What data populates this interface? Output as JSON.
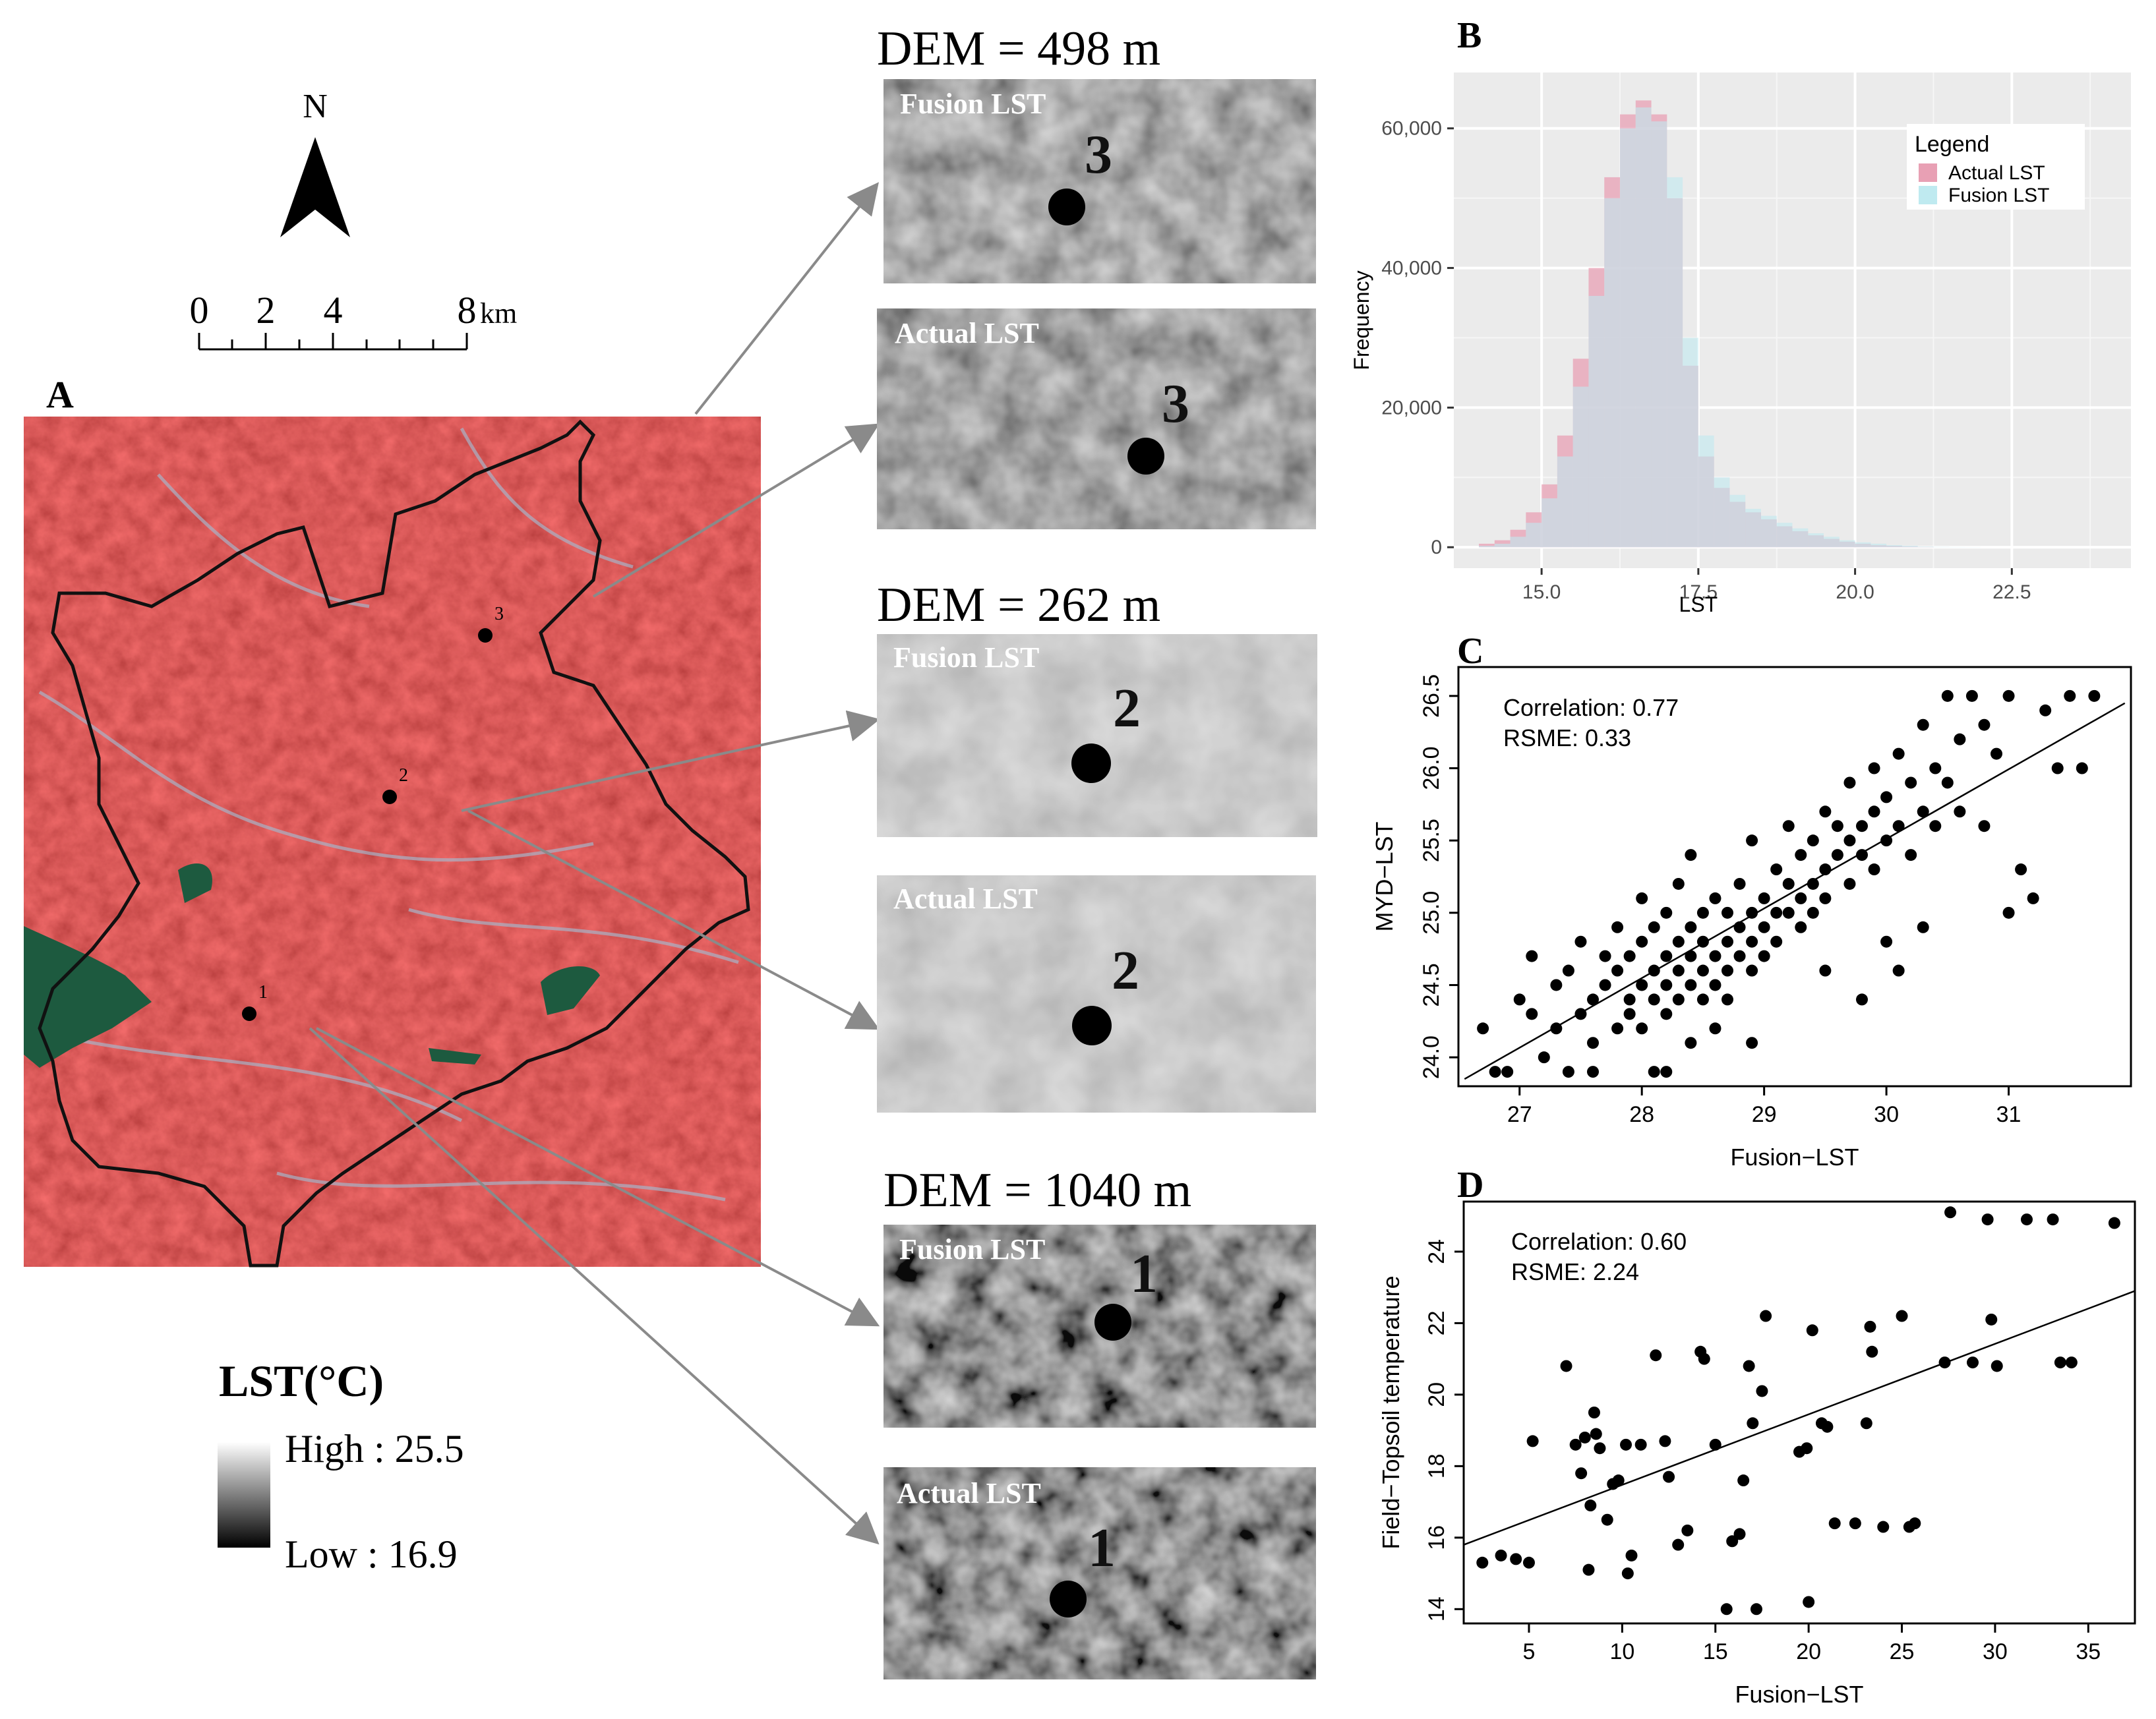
{
  "panel_a": {
    "label": "A",
    "north": "N",
    "scale_ticks": [
      "0",
      "2",
      "4",
      "8"
    ],
    "scale_unit": "km",
    "site_labels": [
      "1",
      "2",
      "3"
    ],
    "legend_title": "LST(°C)",
    "legend_high": "High : 25.5",
    "legend_low": "Low : 16.9",
    "colors": {
      "map_red": "#d62a2a",
      "water": "#1d5a3f",
      "boundary": "#111111"
    }
  },
  "insets": [
    {
      "dem": "DEM = 498 m",
      "site": "3",
      "fusion_label": "Fusion LST",
      "actual_label": "Actual LST"
    },
    {
      "dem": "DEM = 262 m",
      "site": "2",
      "fusion_label": "Fusion LST",
      "actual_label": "Actual LST"
    },
    {
      "dem": "DEM = 1040 m",
      "site": "1",
      "fusion_label": "Fusion LST",
      "actual_label": "Actual LST"
    }
  ],
  "chart_data": [
    {
      "panel": "B",
      "type": "bar",
      "subtype": "overlapping-histogram",
      "xlabel": "LST",
      "ylabel": "Frequency",
      "xlim": [
        13.6,
        24.4
      ],
      "ylim": [
        -3000,
        68000
      ],
      "xticks": [
        15.0,
        17.5,
        20.0,
        22.5
      ],
      "xtick_labels": [
        "15.0",
        "17.5",
        "20.0",
        "22.5"
      ],
      "yticks": [
        0,
        20000,
        40000,
        60000
      ],
      "ytick_labels": [
        "0",
        "20,000",
        "40,000",
        "60,000"
      ],
      "bin_start": 14.0,
      "bin_width": 0.25,
      "legend_title": "Legend",
      "legend_position": "top-right",
      "series": [
        {
          "name": "Actual LST",
          "color": "#e8a0b4",
          "values": [
            500,
            1000,
            2500,
            5000,
            9000,
            16000,
            27000,
            40000,
            53000,
            62000,
            64000,
            62000,
            50000,
            26000,
            13000,
            8500,
            6500,
            5000,
            4000,
            3000,
            2300,
            1700,
            1200,
            800,
            500,
            300,
            200,
            100,
            50,
            0,
            0,
            0
          ]
        },
        {
          "name": "Fusion LST",
          "color": "#bfeaf0",
          "values": [
            200,
            500,
            1500,
            3500,
            7000,
            13000,
            23000,
            36000,
            50000,
            60000,
            63000,
            61000,
            53000,
            30000,
            16000,
            10000,
            7500,
            5500,
            4500,
            3500,
            2700,
            2000,
            1500,
            1000,
            700,
            500,
            300,
            200,
            100,
            50,
            30,
            20
          ]
        }
      ]
    },
    {
      "panel": "C",
      "type": "scatter",
      "xlabel": "Fusion−LST",
      "ylabel": "MYD−LST",
      "xlim": [
        26.5,
        32.0
      ],
      "ylim": [
        23.8,
        26.7
      ],
      "xticks": [
        27,
        28,
        29,
        30,
        31
      ],
      "yticks": [
        24.0,
        24.5,
        25.0,
        25.5,
        26.0,
        26.5
      ],
      "ytick_labels": [
        "24.0",
        "24.5",
        "25.0",
        "25.5",
        "26.0",
        "26.5"
      ],
      "annotations": [
        "Correlation: 0.77",
        "RSME: 0.33"
      ],
      "fit_line": [
        [
          26.55,
          23.85
        ],
        [
          31.95,
          26.45
        ]
      ],
      "points": [
        [
          26.7,
          24.2
        ],
        [
          26.8,
          23.9
        ],
        [
          26.9,
          23.9
        ],
        [
          27.0,
          24.4
        ],
        [
          27.1,
          24.3
        ],
        [
          27.1,
          24.7
        ],
        [
          27.2,
          24.0
        ],
        [
          27.3,
          24.5
        ],
        [
          27.3,
          24.2
        ],
        [
          27.4,
          23.9
        ],
        [
          27.4,
          24.6
        ],
        [
          27.5,
          24.3
        ],
        [
          27.5,
          24.8
        ],
        [
          27.6,
          24.4
        ],
        [
          27.6,
          24.1
        ],
        [
          27.7,
          24.5
        ],
        [
          27.7,
          24.7
        ],
        [
          27.8,
          24.2
        ],
        [
          27.8,
          24.6
        ],
        [
          27.8,
          24.9
        ],
        [
          27.9,
          24.4
        ],
        [
          27.9,
          24.3
        ],
        [
          27.9,
          24.7
        ],
        [
          28.0,
          24.5
        ],
        [
          28.0,
          24.8
        ],
        [
          28.0,
          24.2
        ],
        [
          28.0,
          25.1
        ],
        [
          28.1,
          24.6
        ],
        [
          28.1,
          24.4
        ],
        [
          28.1,
          24.9
        ],
        [
          28.1,
          23.9
        ],
        [
          28.2,
          24.5
        ],
        [
          28.2,
          24.7
        ],
        [
          28.2,
          25.0
        ],
        [
          28.2,
          24.3
        ],
        [
          28.3,
          24.6
        ],
        [
          28.3,
          24.8
        ],
        [
          28.3,
          24.4
        ],
        [
          28.3,
          25.2
        ],
        [
          28.4,
          24.5
        ],
        [
          28.4,
          24.7
        ],
        [
          28.4,
          24.9
        ],
        [
          28.4,
          24.1
        ],
        [
          28.4,
          25.4
        ],
        [
          28.5,
          24.6
        ],
        [
          28.5,
          24.8
        ],
        [
          28.5,
          24.4
        ],
        [
          28.5,
          25.0
        ],
        [
          28.6,
          24.7
        ],
        [
          28.6,
          24.5
        ],
        [
          28.6,
          25.1
        ],
        [
          28.6,
          24.2
        ],
        [
          28.7,
          24.8
        ],
        [
          28.7,
          24.6
        ],
        [
          28.7,
          25.0
        ],
        [
          28.7,
          24.4
        ],
        [
          28.8,
          24.9
        ],
        [
          28.8,
          24.7
        ],
        [
          28.8,
          25.2
        ],
        [
          28.9,
          24.8
        ],
        [
          28.9,
          25.0
        ],
        [
          28.9,
          24.6
        ],
        [
          28.9,
          25.5
        ],
        [
          29.0,
          24.9
        ],
        [
          29.0,
          25.1
        ],
        [
          29.0,
          24.7
        ],
        [
          29.1,
          25.0
        ],
        [
          29.1,
          25.3
        ],
        [
          29.1,
          24.8
        ],
        [
          29.2,
          25.2
        ],
        [
          29.2,
          25.0
        ],
        [
          29.2,
          25.6
        ],
        [
          29.3,
          25.1
        ],
        [
          29.3,
          25.4
        ],
        [
          29.3,
          24.9
        ],
        [
          29.4,
          25.2
        ],
        [
          29.4,
          25.5
        ],
        [
          29.4,
          25.0
        ],
        [
          29.5,
          25.3
        ],
        [
          29.5,
          25.7
        ],
        [
          29.5,
          25.1
        ],
        [
          29.6,
          25.4
        ],
        [
          29.6,
          25.6
        ],
        [
          29.7,
          25.2
        ],
        [
          29.7,
          25.5
        ],
        [
          29.7,
          25.9
        ],
        [
          29.8,
          25.4
        ],
        [
          29.8,
          25.6
        ],
        [
          29.9,
          25.3
        ],
        [
          29.9,
          25.7
        ],
        [
          29.9,
          26.0
        ],
        [
          30.0,
          25.5
        ],
        [
          30.0,
          25.8
        ],
        [
          30.1,
          25.6
        ],
        [
          30.1,
          26.1
        ],
        [
          30.2,
          25.4
        ],
        [
          30.2,
          25.9
        ],
        [
          30.3,
          25.7
        ],
        [
          30.3,
          26.3
        ],
        [
          30.4,
          25.6
        ],
        [
          30.4,
          26.0
        ],
        [
          30.5,
          25.9
        ],
        [
          30.5,
          26.5
        ],
        [
          30.6,
          25.7
        ],
        [
          30.6,
          26.2
        ],
        [
          30.7,
          26.5
        ],
        [
          30.8,
          25.6
        ],
        [
          30.8,
          26.3
        ],
        [
          30.9,
          26.1
        ],
        [
          31.0,
          26.5
        ],
        [
          31.0,
          25.0
        ],
        [
          31.1,
          25.3
        ],
        [
          31.2,
          25.1
        ],
        [
          31.3,
          26.4
        ],
        [
          31.4,
          26.0
        ],
        [
          31.5,
          26.5
        ],
        [
          31.6,
          26.0
        ],
        [
          31.7,
          26.5
        ],
        [
          30.1,
          24.6
        ],
        [
          30.3,
          24.9
        ],
        [
          29.8,
          24.4
        ],
        [
          28.9,
          24.1
        ],
        [
          28.2,
          23.9
        ],
        [
          27.6,
          23.9
        ],
        [
          29.5,
          24.6
        ],
        [
          30.0,
          24.8
        ]
      ]
    },
    {
      "panel": "D",
      "type": "scatter",
      "xlabel": "Fusion−LST",
      "ylabel": "Field−Topsoil temperature",
      "xlim": [
        1.5,
        37.5
      ],
      "ylim": [
        13.6,
        25.4
      ],
      "xticks": [
        5,
        10,
        15,
        20,
        25,
        30,
        35
      ],
      "yticks": [
        14,
        16,
        18,
        20,
        22,
        24
      ],
      "annotations": [
        "Correlation: 0.60",
        "RSME: 2.24"
      ],
      "fit_line": [
        [
          1.5,
          15.8
        ],
        [
          37.5,
          22.9
        ]
      ],
      "points": [
        [
          2.5,
          15.3
        ],
        [
          3.5,
          15.5
        ],
        [
          4.3,
          15.4
        ],
        [
          5.0,
          15.3
        ],
        [
          5.2,
          18.7
        ],
        [
          7.0,
          20.8
        ],
        [
          7.5,
          18.6
        ],
        [
          7.8,
          17.8
        ],
        [
          8.0,
          18.8
        ],
        [
          8.2,
          15.1
        ],
        [
          8.3,
          16.9
        ],
        [
          8.5,
          19.5
        ],
        [
          8.6,
          18.9
        ],
        [
          8.8,
          18.5
        ],
        [
          9.2,
          16.5
        ],
        [
          9.5,
          17.5
        ],
        [
          9.8,
          17.6
        ],
        [
          10.2,
          18.6
        ],
        [
          10.3,
          15.0
        ],
        [
          10.5,
          15.5
        ],
        [
          11.0,
          18.6
        ],
        [
          11.8,
          21.1
        ],
        [
          12.3,
          18.7
        ],
        [
          12.5,
          17.7
        ],
        [
          13.0,
          15.8
        ],
        [
          13.5,
          16.2
        ],
        [
          14.2,
          21.2
        ],
        [
          14.4,
          21.0
        ],
        [
          15.0,
          18.6
        ],
        [
          15.6,
          14.0
        ],
        [
          15.9,
          15.9
        ],
        [
          16.3,
          16.1
        ],
        [
          16.5,
          17.6
        ],
        [
          16.8,
          20.8
        ],
        [
          17.0,
          19.2
        ],
        [
          17.2,
          14.0
        ],
        [
          17.5,
          20.1
        ],
        [
          17.7,
          22.2
        ],
        [
          19.5,
          18.4
        ],
        [
          19.9,
          18.5
        ],
        [
          20.0,
          14.2
        ],
        [
          20.2,
          21.8
        ],
        [
          20.7,
          19.2
        ],
        [
          21.0,
          19.1
        ],
        [
          21.4,
          16.4
        ],
        [
          22.5,
          16.4
        ],
        [
          23.1,
          19.2
        ],
        [
          23.3,
          21.9
        ],
        [
          23.4,
          21.2
        ],
        [
          24.0,
          16.3
        ],
        [
          25.0,
          22.2
        ],
        [
          25.4,
          16.3
        ],
        [
          25.7,
          16.4
        ],
        [
          27.3,
          20.9
        ],
        [
          27.6,
          25.1
        ],
        [
          28.8,
          20.9
        ],
        [
          29.6,
          24.9
        ],
        [
          29.8,
          22.1
        ],
        [
          30.1,
          20.8
        ],
        [
          31.7,
          24.9
        ],
        [
          33.1,
          24.9
        ],
        [
          33.5,
          20.9
        ],
        [
          34.1,
          20.9
        ],
        [
          36.4,
          24.8
        ]
      ]
    }
  ]
}
